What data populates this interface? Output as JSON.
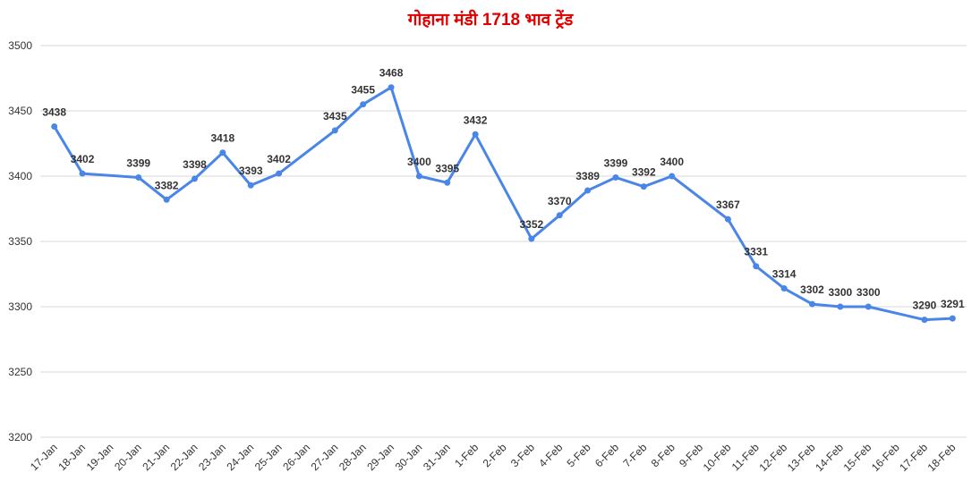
{
  "chart_data": {
    "type": "line",
    "title": "गोहाना मंडी 1718 भाव ट्रेंड",
    "categories": [
      "17-Jan",
      "18-Jan",
      "19-Jan",
      "20-Jan",
      "21-Jan",
      "22-Jan",
      "23-Jan",
      "24-Jan",
      "25-Jan",
      "26-Jan",
      "27-Jan",
      "28-Jan",
      "29-Jan",
      "30-Jan",
      "31-Jan",
      "1-Feb",
      "2-Feb",
      "3-Feb",
      "4-Feb",
      "5-Feb",
      "6-Feb",
      "7-Feb",
      "8-Feb",
      "9-Feb",
      "10-Feb",
      "11-Feb",
      "12-Feb",
      "13-Feb",
      "14-Feb",
      "15-Feb",
      "16-Feb",
      "17-Feb",
      "18-Feb"
    ],
    "values": [
      3438,
      3402,
      null,
      3399,
      3382,
      3398,
      3418,
      3393,
      3402,
      null,
      3435,
      3455,
      3468,
      3400,
      3395,
      3432,
      null,
      3352,
      3370,
      3389,
      3399,
      3392,
      3400,
      null,
      3367,
      3331,
      3314,
      3302,
      3300,
      3300,
      null,
      3290,
      3291
    ],
    "color": "#4a86e8",
    "span_gaps": true,
    "ylim": [
      3200,
      3500
    ],
    "yticks": [
      3200,
      3250,
      3300,
      3350,
      3400,
      3450,
      3500
    ],
    "grid": true
  }
}
